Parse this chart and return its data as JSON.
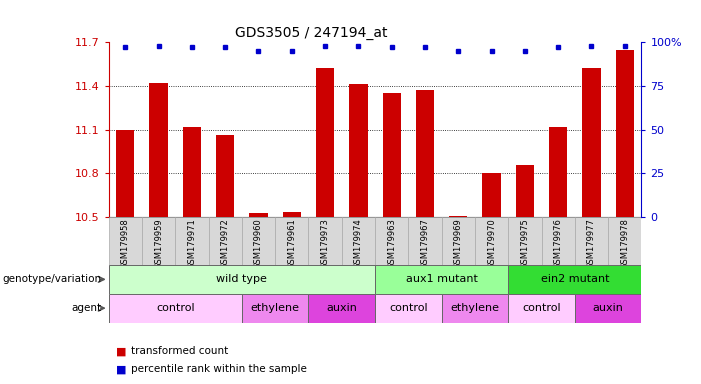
{
  "title": "GDS3505 / 247194_at",
  "samples": [
    "GSM179958",
    "GSM179959",
    "GSM179971",
    "GSM179972",
    "GSM179960",
    "GSM179961",
    "GSM179973",
    "GSM179974",
    "GSM179963",
    "GSM179967",
    "GSM179969",
    "GSM179970",
    "GSM179975",
    "GSM179976",
    "GSM179977",
    "GSM179978"
  ],
  "bar_values": [
    11.1,
    11.42,
    11.12,
    11.06,
    10.53,
    10.535,
    11.52,
    11.41,
    11.35,
    11.37,
    10.505,
    10.8,
    10.86,
    11.12,
    11.52,
    11.65
  ],
  "percentile_values": [
    97,
    98,
    97,
    97,
    95,
    95,
    98,
    98,
    97,
    97,
    95,
    95,
    95,
    97,
    98,
    98
  ],
  "ymin": 10.5,
  "ymax": 11.7,
  "yticks": [
    10.5,
    10.8,
    11.1,
    11.4,
    11.7
  ],
  "right_yticks": [
    0,
    25,
    50,
    75,
    100
  ],
  "right_ytick_labels": [
    "0",
    "25",
    "50",
    "75",
    "100%"
  ],
  "bar_color": "#cc0000",
  "dot_color": "#0000cc",
  "bar_bottom": 10.5,
  "genotype_groups": [
    {
      "label": "wild type",
      "start": 0,
      "end": 8,
      "color": "#ccffcc"
    },
    {
      "label": "aux1 mutant",
      "start": 8,
      "end": 12,
      "color": "#99ff99"
    },
    {
      "label": "ein2 mutant",
      "start": 12,
      "end": 16,
      "color": "#33dd33"
    }
  ],
  "agent_groups": [
    {
      "label": "control",
      "start": 0,
      "end": 4,
      "color": "#ffccff"
    },
    {
      "label": "ethylene",
      "start": 4,
      "end": 6,
      "color": "#ee88ee"
    },
    {
      "label": "auxin",
      "start": 6,
      "end": 8,
      "color": "#dd44dd"
    },
    {
      "label": "control",
      "start": 8,
      "end": 10,
      "color": "#ffccff"
    },
    {
      "label": "ethylene",
      "start": 10,
      "end": 12,
      "color": "#ee88ee"
    },
    {
      "label": "control",
      "start": 12,
      "end": 14,
      "color": "#ffccff"
    },
    {
      "label": "auxin",
      "start": 14,
      "end": 16,
      "color": "#dd44dd"
    }
  ],
  "legend_items": [
    {
      "label": "transformed count",
      "color": "#cc0000"
    },
    {
      "label": "percentile rank within the sample",
      "color": "#0000cc"
    }
  ],
  "left_label_color": "#cc0000",
  "right_label_color": "#0000cc"
}
